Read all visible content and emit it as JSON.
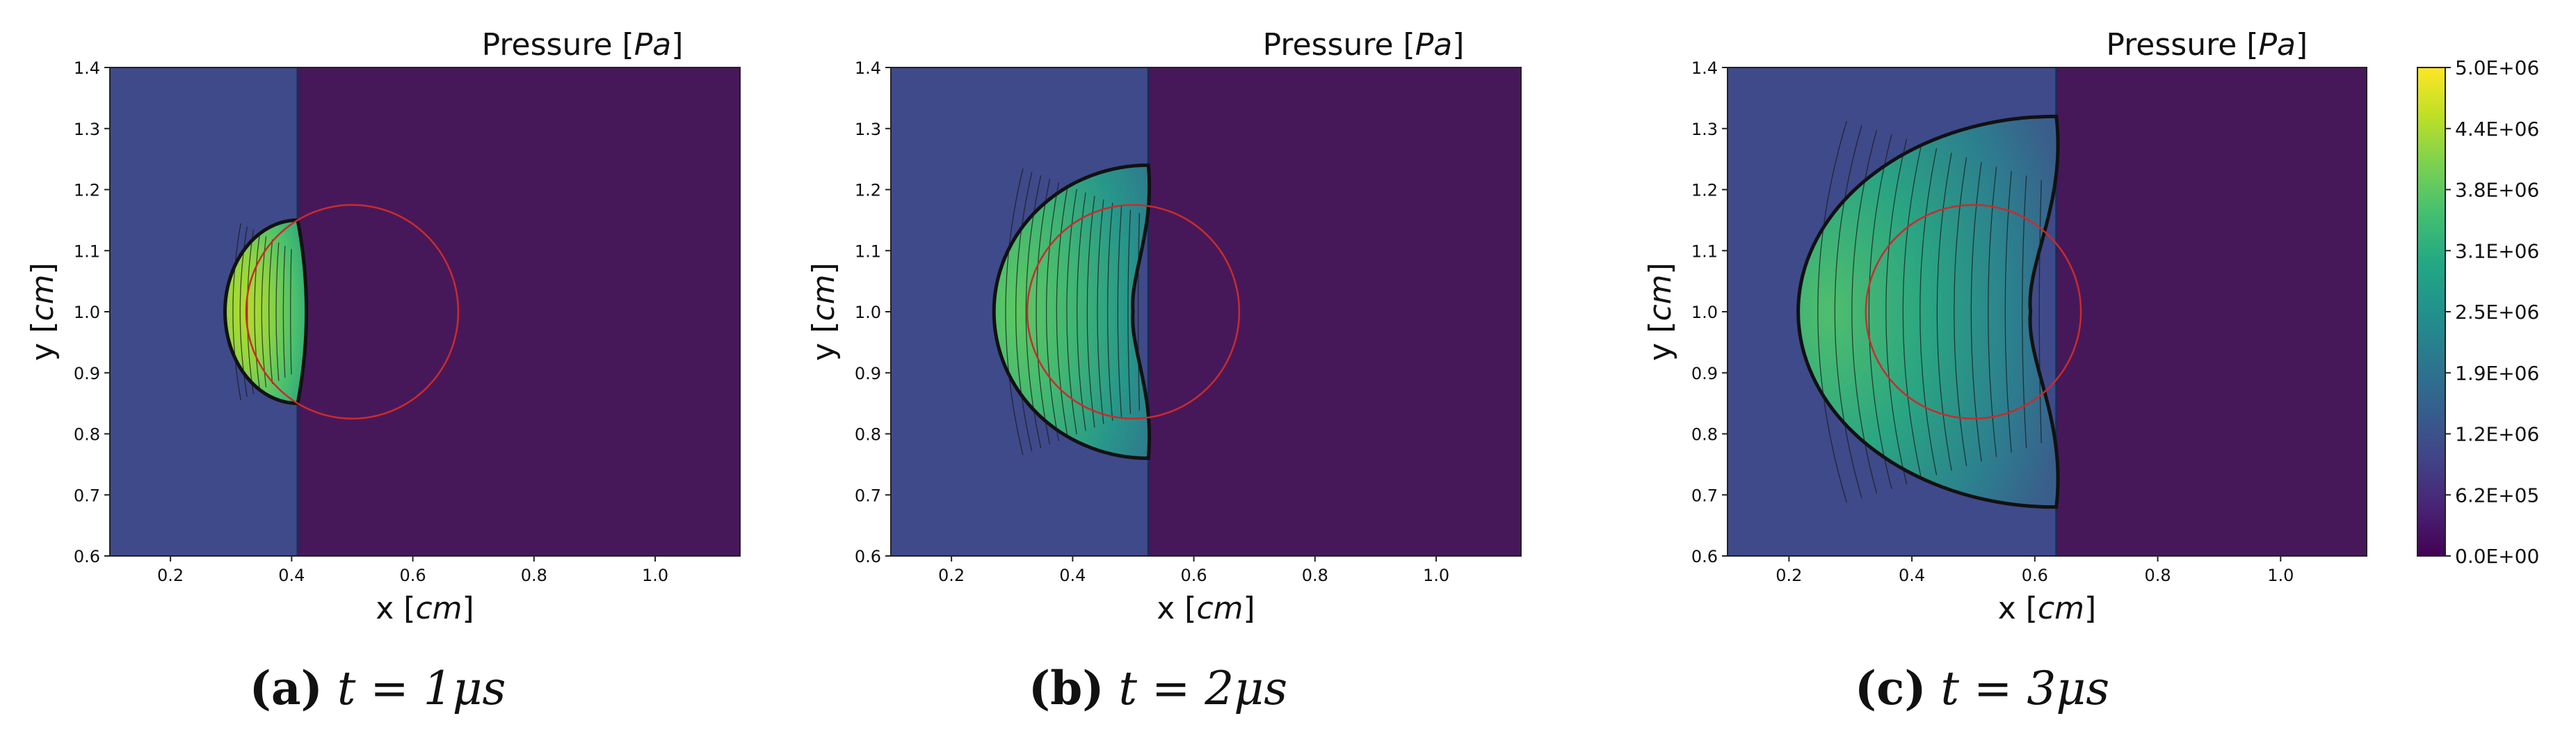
{
  "figure": {
    "panels": [
      {
        "title_main": "Pressure [",
        "title_unit": "Pa",
        "title_close": "]",
        "xlabel_main": "x [",
        "xlabel_unit": "cm",
        "xlabel_close": "]",
        "ylabel_main": "y [",
        "ylabel_unit": "cm",
        "ylabel_close": "]",
        "caption_letter": "(a)",
        "caption_text": "t = 1μs"
      },
      {
        "title_main": "Pressure [",
        "title_unit": "Pa",
        "title_close": "]",
        "xlabel_main": "x [",
        "xlabel_unit": "cm",
        "xlabel_close": "]",
        "ylabel_main": "y [",
        "ylabel_unit": "cm",
        "ylabel_close": "]",
        "caption_letter": "(b)",
        "caption_text": "t = 2μs"
      },
      {
        "title_main": "Pressure [",
        "title_unit": "Pa",
        "title_close": "]",
        "xlabel_main": "x [",
        "xlabel_unit": "cm",
        "xlabel_close": "]",
        "ylabel_main": "y [",
        "ylabel_unit": "cm",
        "ylabel_close": "]",
        "caption_letter": "(c)",
        "caption_text": "t = 3μs"
      }
    ],
    "colorbar": {
      "ticks": [
        "5.0E+06",
        "4.4E+06",
        "3.8E+06",
        "3.1E+06",
        "2.5E+06",
        "1.9E+06",
        "1.2E+06",
        "6.2E+05",
        "0.0E+00"
      ],
      "colormap": "viridis"
    }
  },
  "chart_data": {
    "type": "heatmap",
    "x_range": [
      0.1,
      1.14
    ],
    "y_range": [
      0.6,
      1.4
    ],
    "x_ticks": [
      "0.2",
      "0.4",
      "0.6",
      "0.8",
      "1.0"
    ],
    "y_ticks": [
      "1.4",
      "1.3",
      "1.2",
      "1.1",
      "1.0",
      "0.9",
      "0.8",
      "0.7",
      "0.6"
    ],
    "bubble": {
      "center_x": 0.5,
      "center_y": 1.0,
      "radius": 0.175,
      "color": "#cc2a2a"
    },
    "colors": {
      "high_pressure_region": "#3f4a8a",
      "ambient": "#46185a"
    },
    "snapshots": [
      {
        "time_us": 1,
        "shock_x": 0.41,
        "front_left_x": 0.29,
        "front_half_height": 0.15,
        "peak_pressure": 4400000.0
      },
      {
        "time_us": 2,
        "shock_x": 0.525,
        "front_left_x": 0.27,
        "front_half_height": 0.24,
        "peak_pressure": 3500000.0
      },
      {
        "time_us": 3,
        "shock_x": 0.635,
        "front_left_x": 0.215,
        "front_half_height": 0.32,
        "peak_pressure": 3000000.0
      }
    ]
  }
}
